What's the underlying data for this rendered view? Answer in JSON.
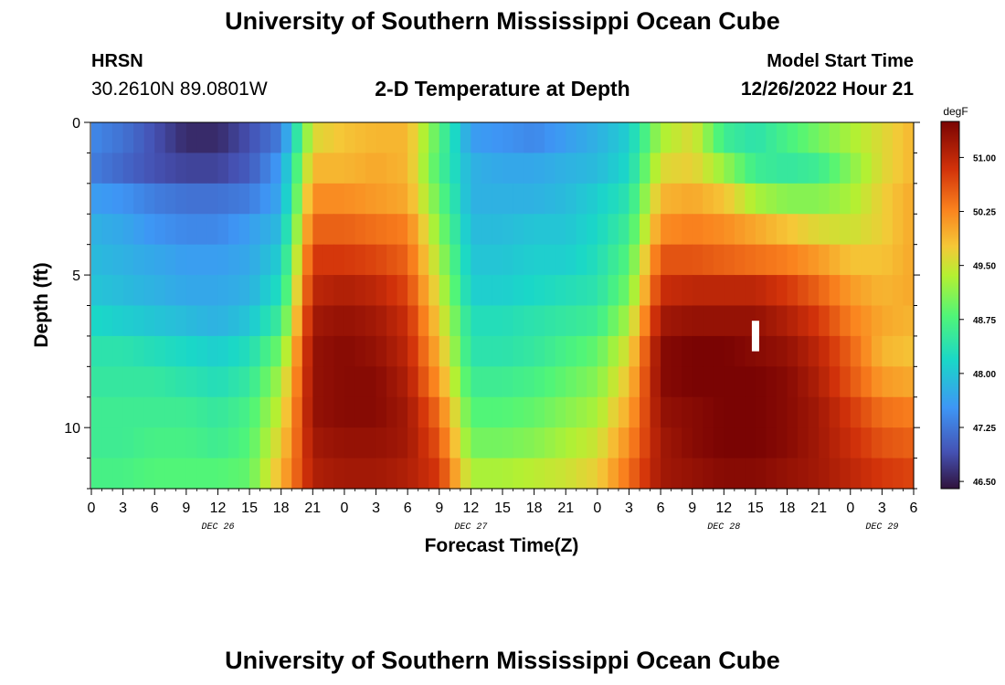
{
  "header": {
    "title": "University of Southern Mississippi Ocean Cube",
    "station": "HRSN",
    "coordinates": "30.2610N  89.0801W",
    "subtitle": "2-D Temperature at Depth",
    "model_start_label": "Model Start Time",
    "model_start_value": "12/26/2022 Hour 21"
  },
  "footer": {
    "title": "University of Southern Mississippi Ocean Cube"
  },
  "chart_data": {
    "type": "heatmap",
    "title": "2-D Temperature at Depth",
    "xlabel": "Forecast Time(Z)",
    "ylabel": "Depth (ft)",
    "x_hours": [
      0,
      78
    ],
    "ylim": [
      0,
      12
    ],
    "x_tick_labels": [
      "0",
      "3",
      "6",
      "9",
      "12",
      "15",
      "18",
      "21",
      "0",
      "3",
      "6",
      "9",
      "12",
      "15",
      "18",
      "21",
      "0",
      "3",
      "6",
      "9",
      "12",
      "15",
      "18",
      "21",
      "0",
      "3",
      "6"
    ],
    "day_labels": [
      {
        "label": "DEC 26",
        "hour": 12
      },
      {
        "label": "DEC 27",
        "hour": 36
      },
      {
        "label": "DEC 28",
        "hour": 60
      },
      {
        "label": "DEC 29",
        "hour": 75
      }
    ],
    "y_tick_labels": [
      {
        "label": "0",
        "depth": 0
      },
      {
        "label": "5",
        "depth": 5
      },
      {
        "label": "10",
        "depth": 10
      }
    ],
    "colorbar": {
      "unit": "degF",
      "min": 46.4,
      "max": 51.5,
      "ticks": [
        {
          "label": "51.00",
          "value": 51.0
        },
        {
          "label": "50.25",
          "value": 50.25
        },
        {
          "label": "49.50",
          "value": 49.5
        },
        {
          "label": "48.75",
          "value": 48.75
        },
        {
          "label": "48.00",
          "value": 48.0
        },
        {
          "label": "47.25",
          "value": 47.25
        },
        {
          "label": "46.50",
          "value": 46.5
        }
      ]
    },
    "depth_rows": [
      0.5,
      1.5,
      2.5,
      3.5,
      4.5,
      5.5,
      6.5,
      7.5,
      8.5,
      9.5,
      10.5,
      11.5
    ],
    "columns_per_hour": 1,
    "row_labels": "temperature (degF) per depth row, keyframes every 3 hours from hour 0 to 78",
    "keyframe_hours": [
      0,
      3,
      6,
      9,
      12,
      15,
      18,
      21,
      24,
      27,
      30,
      33,
      36,
      39,
      42,
      45,
      48,
      51,
      54,
      57,
      60,
      63,
      66,
      69,
      72,
      75,
      78
    ],
    "temps": [
      [
        47.4,
        47.2,
        46.9,
        46.6,
        46.6,
        46.9,
        47.3,
        49.6,
        49.8,
        49.9,
        49.9,
        48.8,
        47.6,
        47.5,
        47.4,
        47.6,
        47.8,
        48.1,
        49.3,
        49.6,
        48.6,
        48.4,
        48.7,
        49.0,
        49.3,
        49.6,
        49.9
      ],
      [
        47.3,
        47.1,
        46.9,
        46.8,
        46.8,
        47.0,
        47.6,
        49.9,
        49.9,
        50.0,
        49.9,
        48.7,
        47.8,
        47.7,
        47.7,
        47.8,
        47.9,
        48.2,
        49.6,
        49.7,
        49.2,
        48.6,
        48.5,
        48.6,
        49.1,
        49.6,
        49.9
      ],
      [
        47.6,
        47.5,
        47.3,
        47.2,
        47.2,
        47.3,
        47.7,
        50.2,
        50.2,
        50.1,
        50.0,
        48.9,
        47.8,
        47.8,
        47.8,
        47.9,
        48.1,
        48.4,
        49.9,
        50.0,
        49.8,
        49.3,
        49.1,
        49.1,
        49.3,
        49.7,
        50.0
      ],
      [
        47.8,
        47.7,
        47.5,
        47.4,
        47.4,
        47.6,
        47.9,
        50.5,
        50.5,
        50.4,
        50.3,
        49.1,
        47.9,
        47.9,
        48.0,
        48.0,
        48.2,
        48.6,
        50.2,
        50.3,
        50.2,
        50.0,
        49.8,
        49.6,
        49.5,
        49.7,
        50.0
      ],
      [
        47.9,
        47.8,
        47.7,
        47.6,
        47.6,
        47.7,
        48.1,
        50.8,
        50.8,
        50.7,
        50.5,
        49.3,
        48.0,
        48.0,
        48.1,
        48.1,
        48.3,
        48.8,
        50.6,
        50.6,
        50.5,
        50.4,
        50.3,
        50.1,
        49.8,
        49.8,
        50.0
      ],
      [
        48.0,
        47.9,
        47.8,
        47.7,
        47.7,
        47.8,
        48.3,
        51.0,
        51.1,
        51.0,
        50.7,
        49.5,
        48.1,
        48.1,
        48.2,
        48.3,
        48.4,
        49.0,
        50.9,
        51.0,
        51.0,
        51.0,
        50.8,
        50.5,
        50.1,
        49.9,
        50.0
      ],
      [
        48.2,
        48.1,
        48.0,
        47.9,
        47.8,
        48.0,
        48.6,
        51.2,
        51.3,
        51.2,
        50.9,
        49.7,
        48.3,
        48.3,
        48.4,
        48.5,
        48.6,
        49.3,
        51.2,
        51.3,
        51.3,
        51.3,
        51.1,
        50.8,
        50.3,
        50.0,
        49.9
      ],
      [
        48.4,
        48.4,
        48.3,
        48.2,
        48.1,
        48.3,
        49.0,
        51.3,
        51.4,
        51.3,
        51.0,
        49.9,
        48.4,
        48.4,
        48.5,
        48.7,
        48.9,
        49.6,
        51.4,
        51.5,
        51.5,
        51.4,
        51.3,
        51.0,
        50.5,
        49.9,
        49.8
      ],
      [
        48.5,
        48.5,
        48.5,
        48.4,
        48.3,
        48.5,
        49.3,
        51.3,
        51.4,
        51.4,
        51.1,
        50.1,
        48.6,
        48.6,
        48.7,
        48.9,
        49.1,
        49.8,
        51.4,
        51.5,
        51.5,
        51.5,
        51.4,
        51.1,
        50.6,
        50.1,
        50.0
      ],
      [
        48.6,
        48.6,
        48.6,
        48.6,
        48.5,
        48.7,
        49.5,
        51.3,
        51.4,
        51.4,
        51.2,
        50.4,
        48.8,
        48.8,
        48.9,
        49.1,
        49.3,
        50.0,
        51.3,
        51.4,
        51.5,
        51.5,
        51.4,
        51.2,
        50.8,
        50.4,
        50.3
      ],
      [
        48.6,
        48.6,
        48.7,
        48.7,
        48.6,
        48.8,
        49.7,
        51.2,
        51.3,
        51.3,
        51.2,
        50.6,
        49.0,
        49.0,
        49.1,
        49.3,
        49.5,
        50.2,
        51.2,
        51.4,
        51.5,
        51.5,
        51.4,
        51.2,
        50.9,
        50.6,
        50.5
      ],
      [
        48.7,
        48.7,
        48.8,
        48.8,
        48.8,
        48.9,
        49.9,
        51.1,
        51.2,
        51.2,
        51.1,
        50.8,
        49.3,
        49.3,
        49.4,
        49.5,
        49.7,
        50.4,
        51.2,
        51.3,
        51.4,
        51.4,
        51.3,
        51.2,
        51.0,
        50.8,
        50.7
      ]
    ],
    "marker": {
      "hour": 63,
      "depth_from": 6.5,
      "depth_to": 7.5
    }
  }
}
